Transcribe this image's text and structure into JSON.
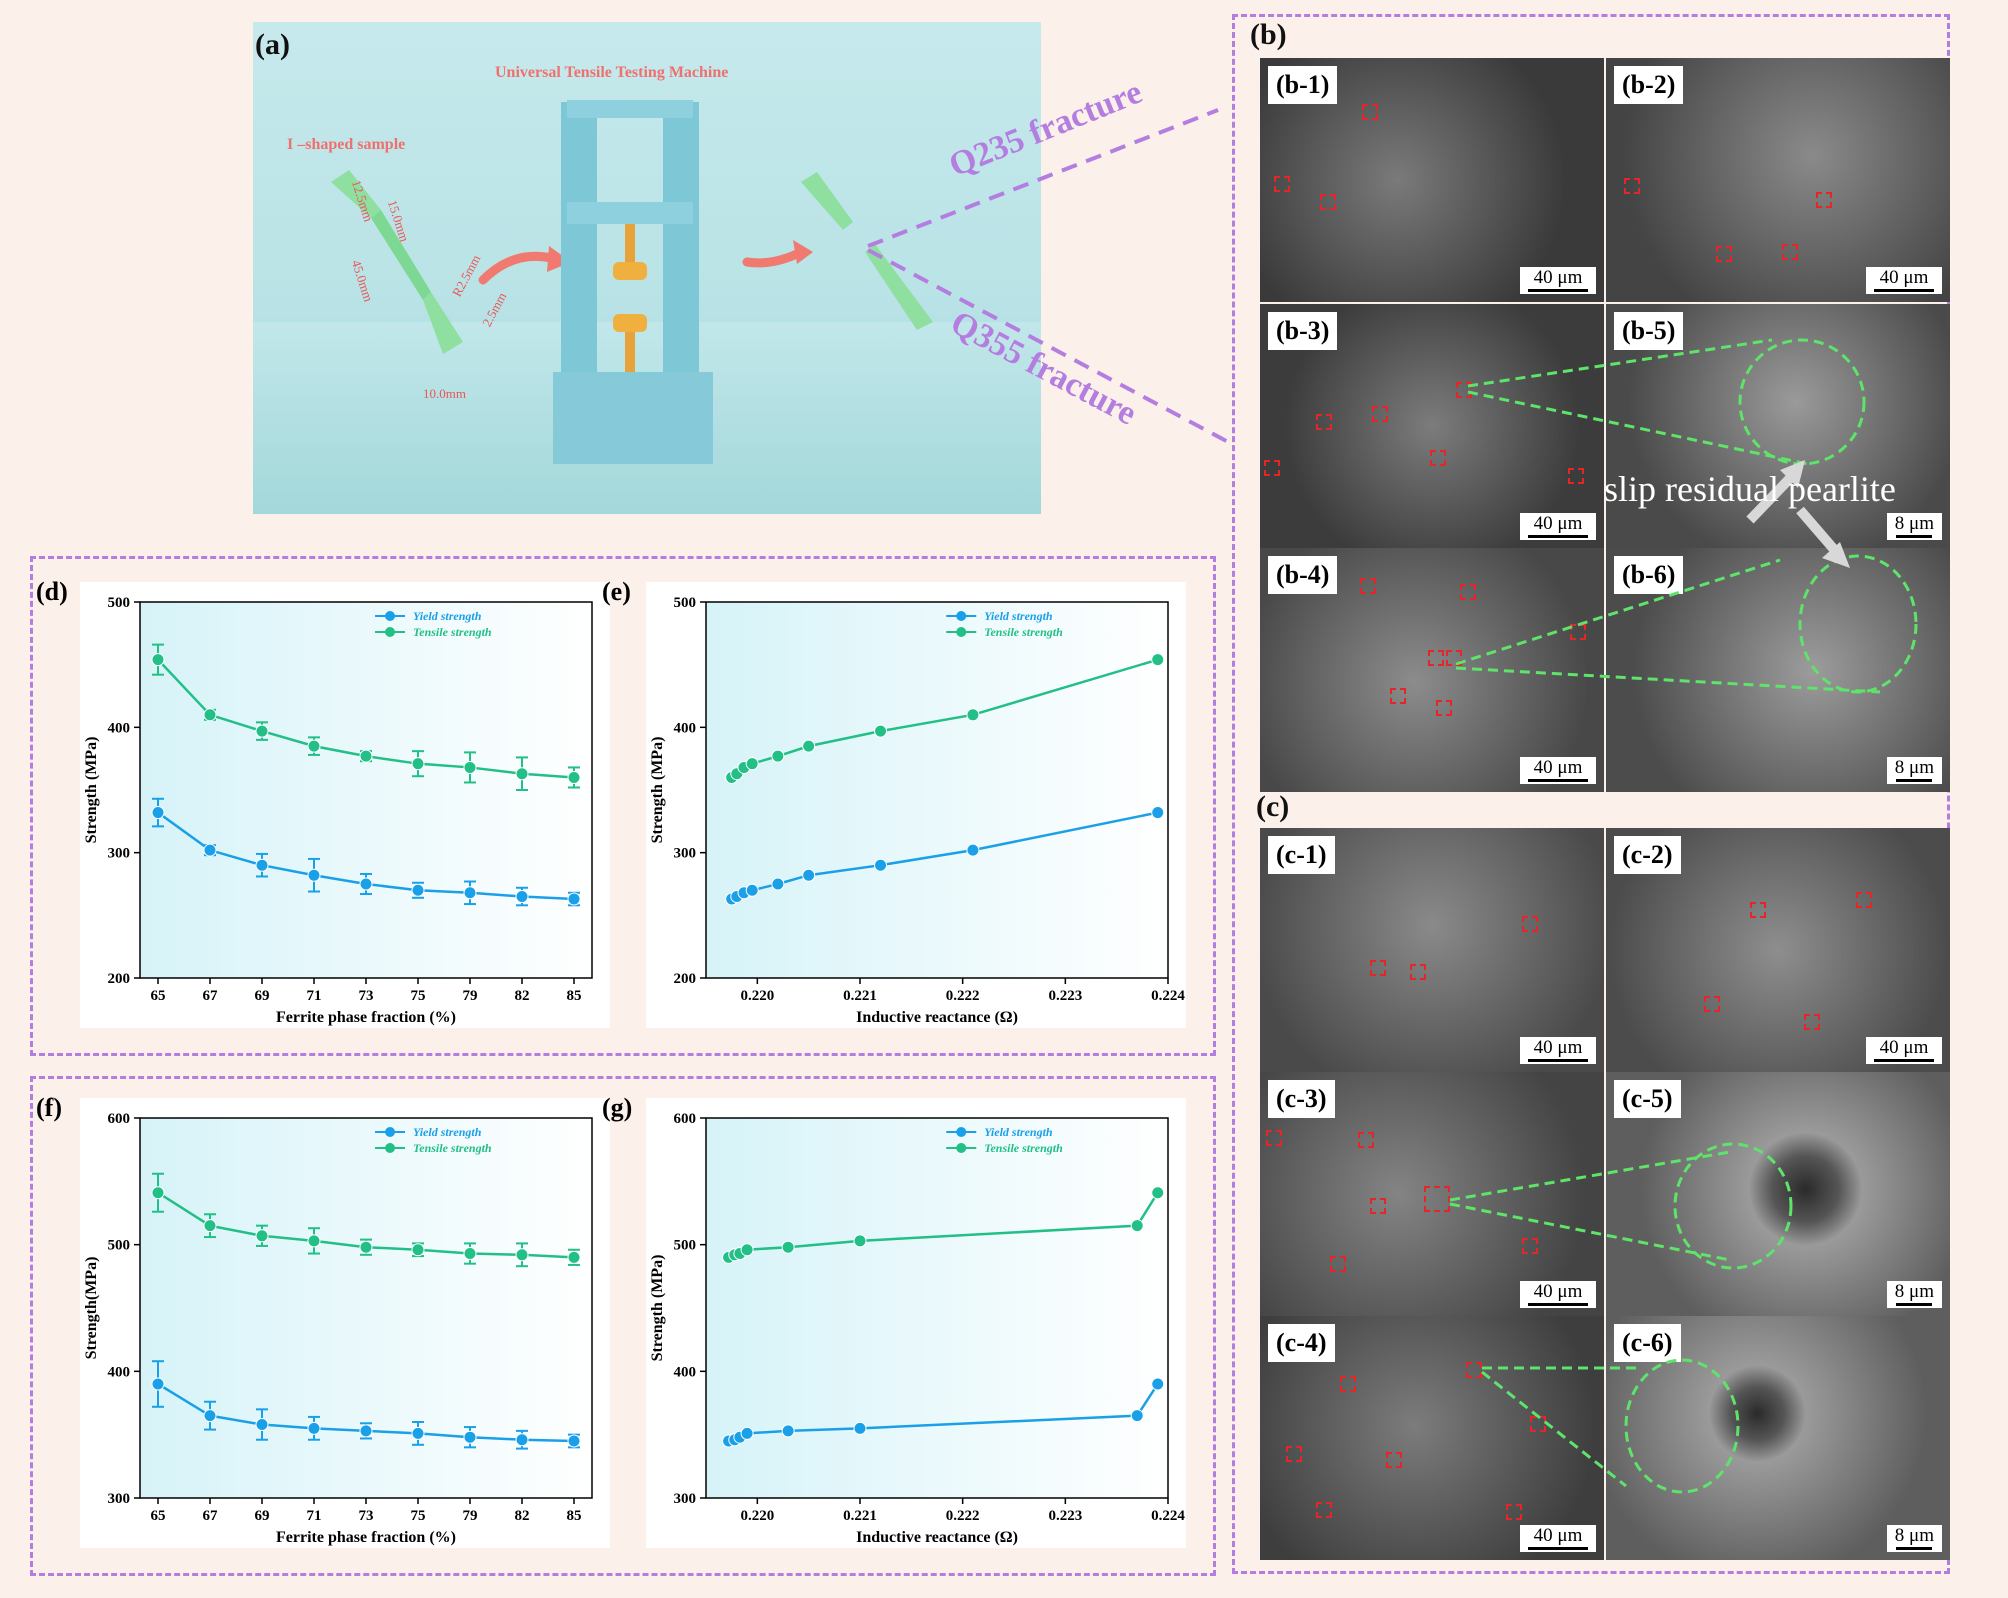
{
  "panel_a": {
    "label": "(a)",
    "machine_title": "Universal Tensile Testing Machine",
    "sample_title": "I –shaped sample",
    "dims": [
      "12.5mm",
      "15.0mm",
      "45.0mm",
      "R2.5mm",
      "2.5mm",
      "10.0mm"
    ],
    "q235_label": "Q235 fracture",
    "q355_label": "Q355 fracture"
  },
  "panel_b": {
    "label": "(b)",
    "tiles": [
      "(b-1)",
      "(b-2)",
      "(b-3)",
      "(b-5)",
      "(b-4)",
      "(b-6)"
    ],
    "annotation": "slip residual pearlite"
  },
  "panel_c": {
    "label": "(c)",
    "tiles": [
      "(c-1)",
      "(c-2)",
      "(c-3)",
      "(c-5)",
      "(c-4)",
      "(c-6)"
    ]
  },
  "scales": {
    "large": "40 μm",
    "small": "8 μm"
  },
  "colors": {
    "yield": "#1aa0e8",
    "tensile": "#22bf86",
    "frame": "#b47ee0"
  },
  "chart_data": [
    {
      "panel": "(d)",
      "type": "line",
      "xlabel": "Ferrite phase fraction (%)",
      "ylabel": "Strength (MPa)",
      "categories": [
        "65",
        "67",
        "69",
        "71",
        "73",
        "75",
        "79",
        "82",
        "85"
      ],
      "ylim": [
        200,
        500
      ],
      "yticks": [
        200,
        300,
        400,
        500
      ],
      "series": [
        {
          "name": "Yield strength",
          "values": [
            332,
            302,
            290,
            282,
            275,
            270,
            268,
            265,
            263
          ],
          "err": [
            11,
            4,
            9,
            13,
            8,
            6,
            9,
            7,
            5
          ]
        },
        {
          "name": "Tensile strength",
          "values": [
            454,
            410,
            397,
            385,
            377,
            371,
            368,
            363,
            360
          ],
          "err": [
            12,
            4,
            7,
            7,
            4,
            10,
            12,
            13,
            8
          ]
        }
      ]
    },
    {
      "panel": "(e)",
      "type": "line",
      "xlabel": "Inductive reactance (Ω)",
      "ylabel": "Strength (MPa)",
      "xlim": [
        0.2195,
        0.224
      ],
      "xticks": [
        "0.220",
        "0.221",
        "0.222",
        "0.223",
        "0.224"
      ],
      "ylim": [
        200,
        500
      ],
      "yticks": [
        200,
        300,
        400,
        500
      ],
      "series": [
        {
          "name": "Yield strength",
          "x": [
            0.21975,
            0.2198,
            0.21987,
            0.21995,
            0.2202,
            0.2205,
            0.2212,
            0.2221,
            0.2239
          ],
          "values": [
            263,
            265,
            268,
            270,
            275,
            282,
            290,
            302,
            332
          ]
        },
        {
          "name": "Tensile strength",
          "x": [
            0.21975,
            0.2198,
            0.21987,
            0.21995,
            0.2202,
            0.2205,
            0.2212,
            0.2221,
            0.2239
          ],
          "values": [
            360,
            363,
            368,
            371,
            377,
            385,
            397,
            410,
            454
          ]
        }
      ]
    },
    {
      "panel": "(f)",
      "type": "line",
      "xlabel": "Ferrite phase fraction (%)",
      "ylabel": "Strength(MPa)",
      "categories": [
        "65",
        "67",
        "69",
        "71",
        "73",
        "75",
        "79",
        "82",
        "85"
      ],
      "ylim": [
        300,
        600
      ],
      "yticks": [
        300,
        400,
        500,
        600
      ],
      "series": [
        {
          "name": "Yield strength",
          "values": [
            390,
            365,
            358,
            355,
            353,
            351,
            348,
            346,
            345
          ],
          "err": [
            18,
            11,
            12,
            9,
            6,
            9,
            8,
            7,
            5
          ]
        },
        {
          "name": "Tensile strength",
          "values": [
            541,
            515,
            507,
            503,
            498,
            496,
            493,
            492,
            490
          ],
          "err": [
            15,
            9,
            8,
            10,
            6,
            5,
            8,
            9,
            6
          ]
        }
      ]
    },
    {
      "panel": "(g)",
      "type": "line",
      "xlabel": "Inductive reactance (Ω)",
      "ylabel": "Strength (MPa)",
      "xlim": [
        0.2195,
        0.224
      ],
      "xticks": [
        "0.220",
        "0.221",
        "0.222",
        "0.223",
        "0.224"
      ],
      "ylim": [
        300,
        600
      ],
      "yticks": [
        300,
        400,
        500,
        600
      ],
      "series": [
        {
          "name": "Yield strength",
          "x": [
            0.21972,
            0.21978,
            0.21983,
            0.2199,
            0.2203,
            0.221,
            0.2237,
            0.2239
          ],
          "values": [
            345,
            346,
            348,
            351,
            353,
            355,
            365,
            390
          ]
        },
        {
          "name": "Tensile strength",
          "x": [
            0.21972,
            0.21978,
            0.21983,
            0.2199,
            0.2203,
            0.221,
            0.2237,
            0.2239
          ],
          "values": [
            490,
            492,
            493,
            496,
            498,
            503,
            515,
            541
          ]
        }
      ]
    }
  ]
}
